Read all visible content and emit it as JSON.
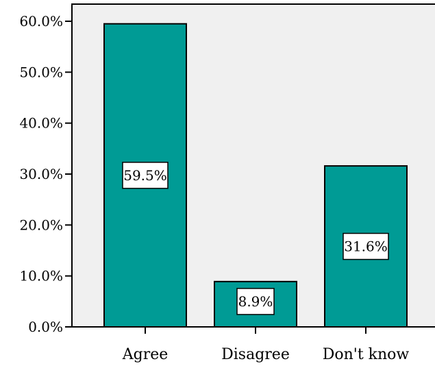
{
  "chart_data": {
    "type": "bar",
    "categories": [
      "Agree",
      "Disagree",
      "Don't know"
    ],
    "values": [
      59.5,
      8.9,
      31.6
    ],
    "data_labels": [
      "59.5%",
      "8.9%",
      "31.6%"
    ],
    "yticks": [
      "0.0%",
      "10.0%",
      "20.0%",
      "30.0%",
      "40.0%",
      "50.0%",
      "60.0%"
    ],
    "ylim": [
      0,
      60
    ],
    "title": "",
    "xlabel": "",
    "ylabel": "",
    "grid": false,
    "colors": {
      "bar": "#009B95",
      "plot_background": "#F0F0F0",
      "outline": "#000000",
      "label_box": "#FFFFFF"
    }
  }
}
